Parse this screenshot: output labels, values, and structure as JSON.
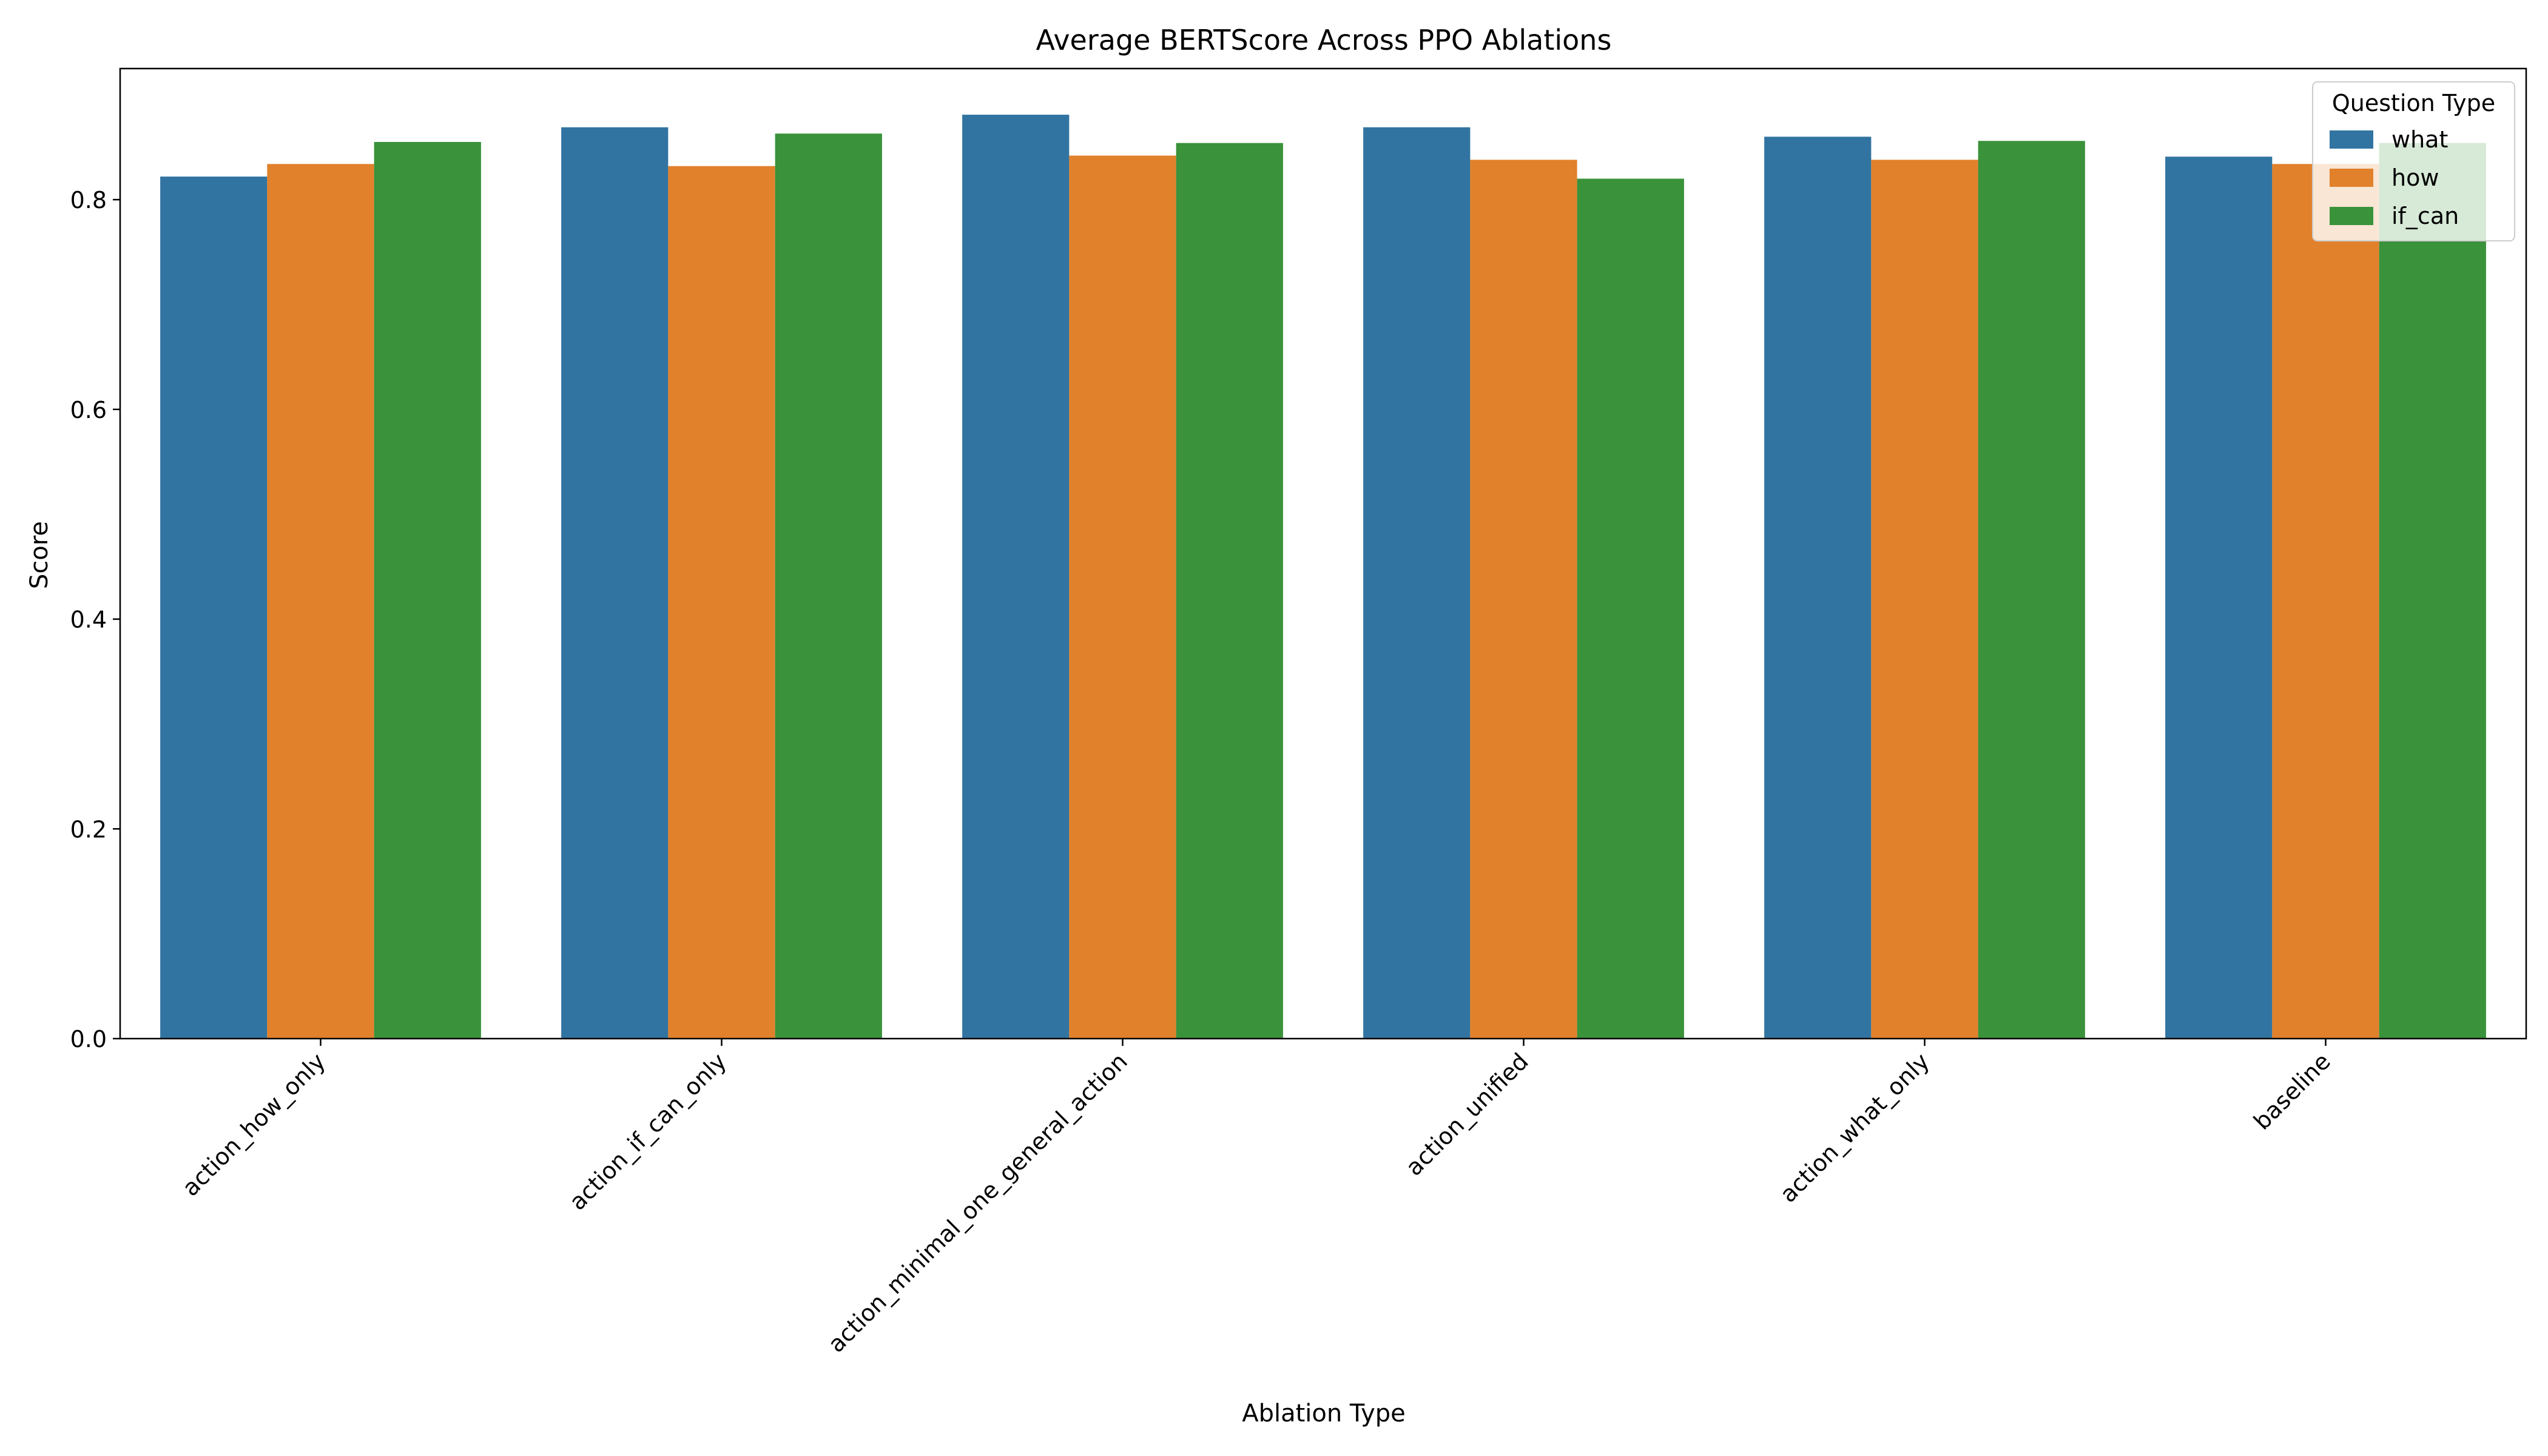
{
  "chart_data": {
    "type": "bar",
    "title": "Average BERTScore Across PPO Ablations",
    "xlabel": "Ablation Type",
    "ylabel": "Score",
    "ylim": [
      0,
      0.925
    ],
    "yticks": [
      "0.0",
      "0.2",
      "0.4",
      "0.6",
      "0.8"
    ],
    "categories": [
      "action_how_only",
      "action_if_can_only",
      "action_minimal_one_general_action",
      "action_unified",
      "action_what_only",
      "baseline"
    ],
    "series": [
      {
        "name": "what",
        "color": "#3274a1",
        "values": [
          0.822,
          0.869,
          0.881,
          0.869,
          0.86,
          0.841
        ]
      },
      {
        "name": "how",
        "color": "#e1812c",
        "values": [
          0.834,
          0.832,
          0.842,
          0.838,
          0.838,
          0.834
        ]
      },
      {
        "name": "if_can",
        "color": "#3a923a",
        "values": [
          0.855,
          0.863,
          0.854,
          0.82,
          0.856,
          0.854
        ]
      }
    ],
    "legend": {
      "title": "Question Type",
      "position": "top-right"
    },
    "grid": false
  }
}
